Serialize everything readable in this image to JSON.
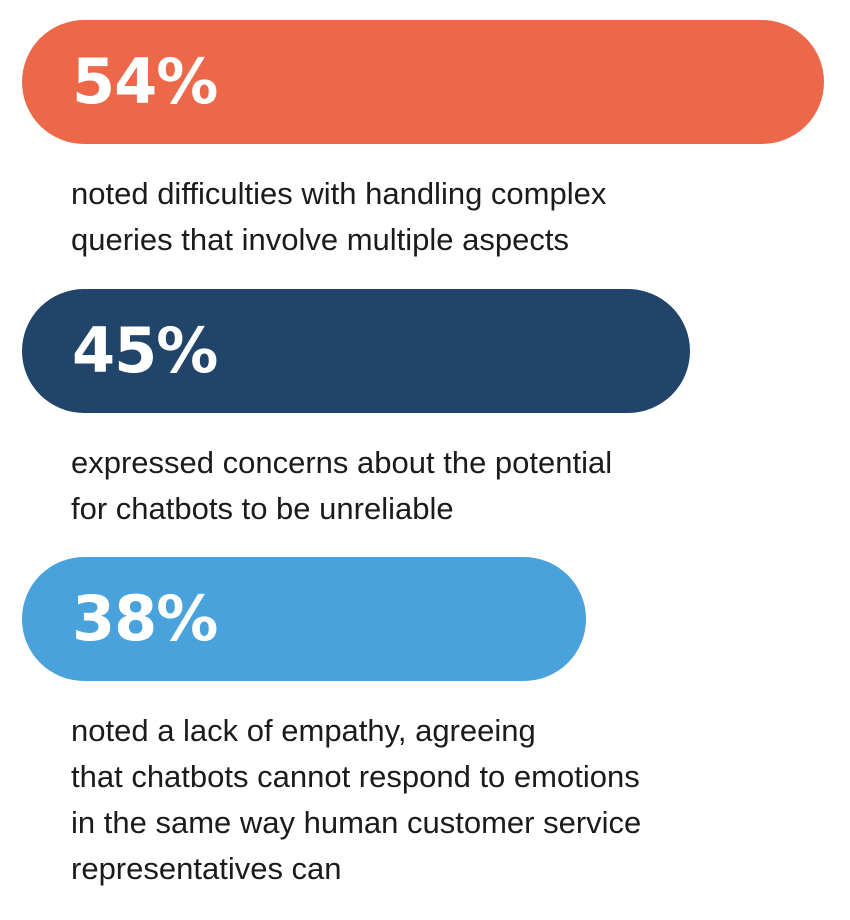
{
  "chart_data": {
    "type": "bar",
    "orientation": "horizontal",
    "categories": [
      "noted difficulties with handling complex\nqueries that involve multiple aspects",
      "expressed concerns about the potential\nfor chatbots to be unreliable",
      "noted a lack of empathy, agreeing\nthat chatbots cannot respond to emotions\nin the same way human customer service\nrepresentatives can"
    ],
    "values": [
      54,
      45,
      38
    ],
    "value_labels": [
      "54%",
      "45%",
      "38%"
    ],
    "colors": [
      "#ec6849",
      "#21446a",
      "#49a2dc"
    ],
    "xlim": [
      0,
      54
    ]
  }
}
